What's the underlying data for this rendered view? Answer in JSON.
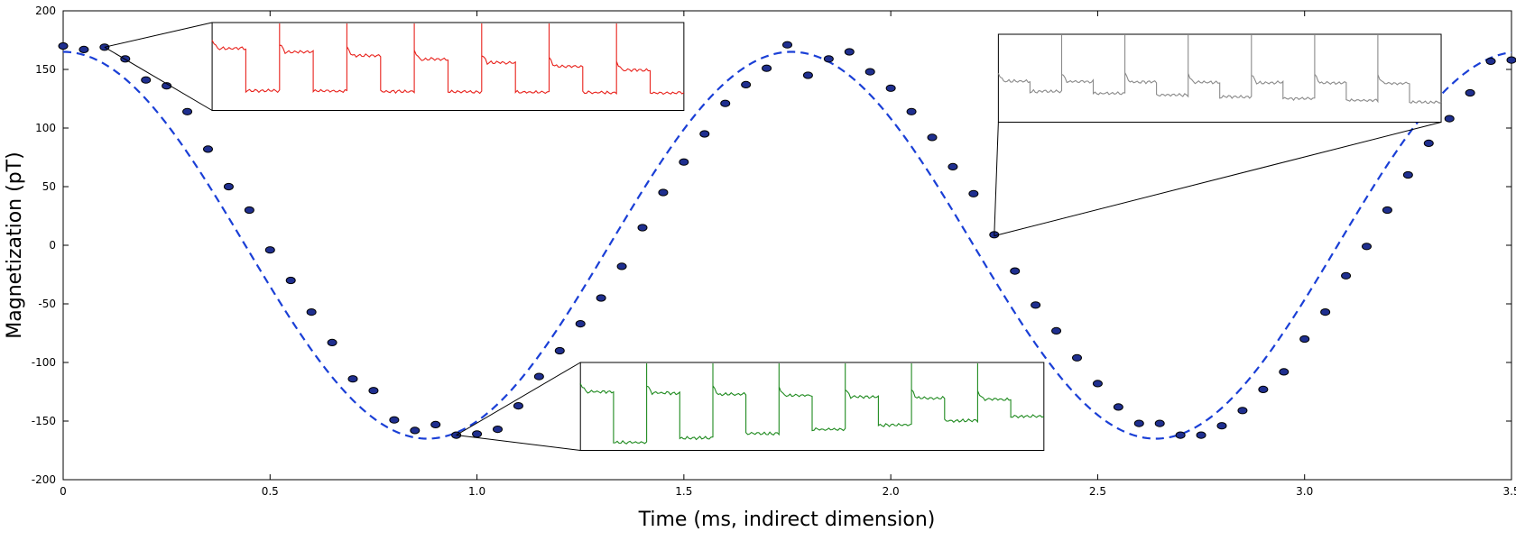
{
  "chart_data": {
    "type": "scatter",
    "xlabel": "Time (ms, indirect dimension)",
    "ylabel": "Magnetization (pT)",
    "xlim": [
      0,
      3.5
    ],
    "ylim": [
      -200,
      200
    ],
    "x_ticks": [
      0,
      0.5,
      1.0,
      1.5,
      2.0,
      2.5,
      3.0,
      3.5
    ],
    "x_tick_labels": [
      "0",
      "0.5",
      "1.0",
      "1.5",
      "2.0",
      "2.5",
      "3.0",
      "3.5"
    ],
    "y_ticks": [
      200,
      150,
      100,
      50,
      0,
      -50,
      -100,
      -150,
      -200
    ],
    "y_tick_labels": [
      "200",
      "150",
      "100",
      "50",
      "0",
      "-50",
      "-100",
      "-150",
      "-200"
    ],
    "grid": false,
    "colors": {
      "points": "#1f2f8f",
      "fit": "#1a3fd6",
      "inset_red": "#e8221c",
      "inset_green": "#1f8a1f",
      "inset_gray": "#8a8a8a"
    },
    "series": [
      {
        "kind": "points",
        "x": [
          0,
          0.05,
          0.1,
          0.15,
          0.2,
          0.25,
          0.3,
          0.35,
          0.4,
          0.45,
          0.5,
          0.55,
          0.6,
          0.65,
          0.7,
          0.75,
          0.8,
          0.85,
          0.9,
          0.95,
          1.0,
          1.05,
          1.1,
          1.15,
          1.2,
          1.25,
          1.3,
          1.35,
          1.4,
          1.45,
          1.5,
          1.55,
          1.6,
          1.65,
          1.7,
          1.75,
          1.8,
          1.85,
          1.9,
          1.95,
          2.0,
          2.05,
          2.1,
          2.15,
          2.2,
          2.25,
          2.3,
          2.35,
          2.4,
          2.45,
          2.5,
          2.55,
          2.6,
          2.65,
          2.7,
          2.75,
          2.8,
          2.85,
          2.9,
          2.95,
          3.0,
          3.05,
          3.1,
          3.15,
          3.2,
          3.25,
          3.3,
          3.35,
          3.4,
          3.45,
          3.5
        ],
        "y": [
          170,
          167,
          169,
          159,
          141,
          136,
          114,
          82,
          50,
          30,
          -4,
          -30,
          -57,
          -83,
          -114,
          -124,
          -149,
          -158,
          -153,
          -162,
          -161,
          -157,
          -137,
          -112,
          -90,
          -67,
          -45,
          -18,
          15,
          45,
          71,
          95,
          121,
          137,
          151,
          171,
          145,
          159,
          165,
          148,
          134,
          114,
          92,
          67,
          44,
          9,
          -22,
          -51,
          -73,
          -96,
          -118,
          -138,
          -152,
          -152,
          -162,
          -162,
          -154,
          -141,
          -123,
          -108,
          -80,
          -57,
          -26,
          -1,
          30,
          60,
          87,
          108,
          130,
          157,
          158
        ]
      },
      {
        "kind": "fit",
        "model": "cosine",
        "amplitude": 165,
        "period": 1.76,
        "offset": 0
      }
    ],
    "insets": [
      {
        "color": "red",
        "anchor": [
          0.1,
          169
        ],
        "box_x": [
          0.36,
          1.5
        ],
        "box_y": [
          115,
          190
        ],
        "signal_high": [
          168,
          148
        ],
        "signal_low": [
          132,
          130
        ]
      },
      {
        "color": "green",
        "anchor": [
          0.95,
          -162
        ],
        "box_x": [
          1.25,
          2.37
        ],
        "box_y": [
          -175,
          -100
        ],
        "signal_high": [
          -125,
          -132
        ],
        "signal_low": [
          -170,
          -146
        ]
      },
      {
        "color": "gray",
        "anchor": [
          2.25,
          8
        ],
        "box_x": [
          2.26,
          3.33
        ],
        "box_y": [
          105,
          180
        ],
        "signal_high": [
          140,
          138
        ],
        "signal_low": [
          132,
          122
        ]
      }
    ]
  }
}
